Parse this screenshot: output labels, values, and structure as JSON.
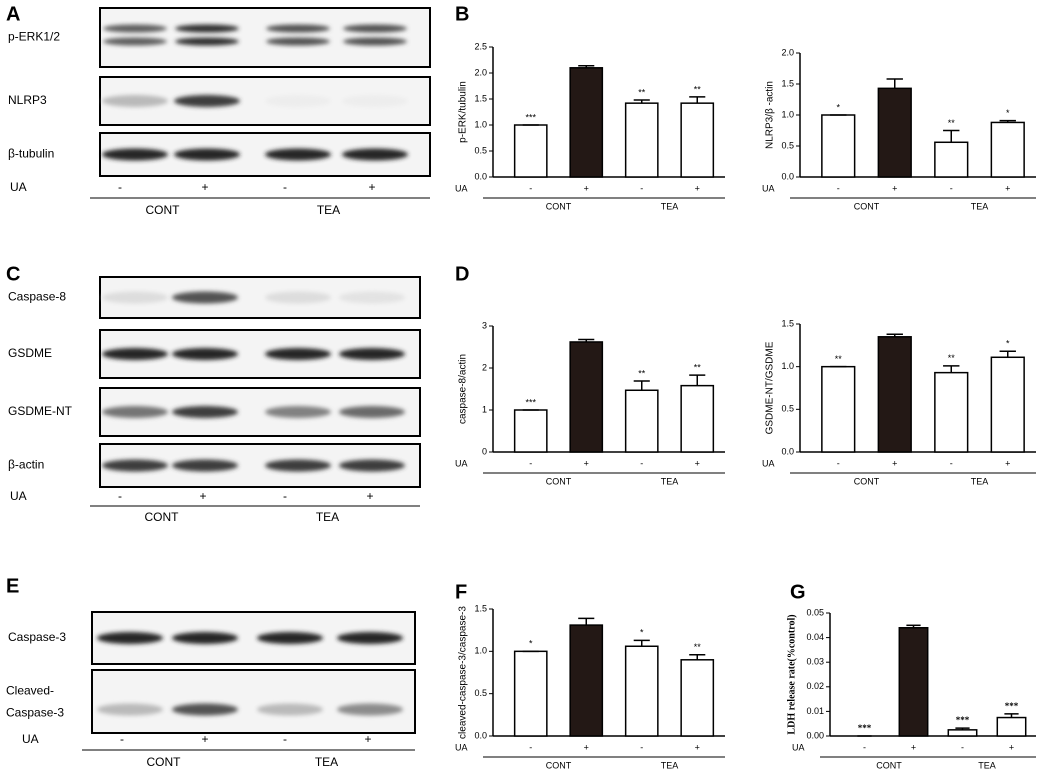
{
  "panel_labels": [
    "A",
    "B",
    "C",
    "D",
    "E",
    "F",
    "G"
  ],
  "blots": [
    {
      "rows": [
        "p-ERK1/2",
        "NLRP3",
        "β-tubulin"
      ],
      "x_label": "UA",
      "categories": [
        "-",
        "+",
        "-",
        "+"
      ],
      "groups": [
        "CONT",
        "TEA"
      ]
    },
    {
      "rows": [
        "Caspase-8",
        "GSDME",
        "GSDME-NT",
        "β-actin"
      ],
      "x_label": "UA",
      "categories": [
        "-",
        "+",
        "-",
        "+"
      ],
      "groups": [
        "CONT",
        "TEA"
      ]
    },
    {
      "rows": [
        "Caspase-3",
        [
          "Cleaved-",
          "Caspase-3"
        ]
      ],
      "x_label": "UA",
      "categories": [
        "-",
        "+",
        "-",
        "+"
      ],
      "groups": [
        "CONT",
        "TEA"
      ]
    }
  ],
  "chart_data": [
    {
      "type": "bar",
      "ylabel": "p-ERK/tubulin",
      "x_label": "UA",
      "categories": [
        "-",
        "+",
        "-",
        "+"
      ],
      "groups": [
        "CONT",
        "TEA"
      ],
      "values": [
        1.0,
        2.1,
        1.42,
        1.42
      ],
      "errors": [
        0,
        0.04,
        0.06,
        0.12
      ],
      "colors": [
        "#ffffff",
        "#231815",
        "#ffffff",
        "#ffffff"
      ],
      "significance": [
        "***",
        null,
        "**",
        "**"
      ],
      "ylim": [
        0,
        2.5
      ],
      "yticks": [
        {
          "value": 0,
          "label": "0.0"
        },
        0.5,
        {
          "value": 1,
          "label": "1.0"
        },
        1.5,
        {
          "value": 2,
          "label": "2.0"
        },
        2.5
      ]
    },
    {
      "type": "bar",
      "ylabel": "NLRP3/β -actin",
      "x_label": "UA",
      "categories": [
        "-",
        "+",
        "-",
        "+"
      ],
      "groups": [
        "CONT",
        "TEA"
      ],
      "values": [
        1.0,
        1.43,
        0.56,
        0.88
      ],
      "errors": [
        0,
        0.15,
        0.19,
        0.03
      ],
      "colors": [
        "#ffffff",
        "#231815",
        "#ffffff",
        "#ffffff"
      ],
      "significance": [
        "*",
        null,
        "**",
        "*"
      ],
      "ylim": [
        0,
        2
      ],
      "yticks": [
        {
          "value": 0,
          "label": "0.0"
        },
        0.5,
        {
          "value": 1,
          "label": "1.0"
        },
        1.5,
        {
          "value": 2,
          "label": "2.0"
        }
      ]
    },
    {
      "type": "bar",
      "ylabel": "caspase-8/actin",
      "x_label": "UA",
      "categories": [
        "-",
        "+",
        "-",
        "+"
      ],
      "groups": [
        "CONT",
        "TEA"
      ],
      "values": [
        1.0,
        2.62,
        1.47,
        1.58
      ],
      "errors": [
        0,
        0.06,
        0.22,
        0.25
      ],
      "colors": [
        "#ffffff",
        "#231815",
        "#ffffff",
        "#ffffff"
      ],
      "significance": [
        "***",
        null,
        "**",
        "**"
      ],
      "ylim": [
        0,
        3
      ],
      "yticks": [
        0,
        1,
        2,
        3
      ]
    },
    {
      "type": "bar",
      "ylabel": "GSDME-NT/GSDME",
      "x_label": "UA",
      "categories": [
        "-",
        "+",
        "-",
        "+"
      ],
      "groups": [
        "CONT",
        "TEA"
      ],
      "values": [
        1.0,
        1.35,
        0.93,
        1.11
      ],
      "errors": [
        0,
        0.03,
        0.08,
        0.07
      ],
      "colors": [
        "#ffffff",
        "#231815",
        "#ffffff",
        "#ffffff"
      ],
      "significance": [
        "**",
        null,
        "**",
        "*"
      ],
      "ylim": [
        0,
        1.5
      ],
      "yticks": [
        {
          "value": 0,
          "label": "0.0"
        },
        0.5,
        {
          "value": 1,
          "label": "1.0"
        },
        1.5
      ]
    },
    {
      "type": "bar",
      "ylabel": "cleaved-caspase-3/caspase-3",
      "x_label": "UA",
      "categories": [
        "-",
        "+",
        "-",
        "+"
      ],
      "groups": [
        "CONT",
        "TEA"
      ],
      "values": [
        1.0,
        1.31,
        1.06,
        0.9
      ],
      "errors": [
        0,
        0.08,
        0.07,
        0.06
      ],
      "colors": [
        "#ffffff",
        "#231815",
        "#ffffff",
        "#ffffff"
      ],
      "significance": [
        "*",
        null,
        "*",
        "**"
      ],
      "ylim": [
        0,
        1.5
      ],
      "yticks": [
        {
          "value": 0,
          "label": "0.0"
        },
        0.5,
        {
          "value": 1,
          "label": "1.0"
        },
        1.5
      ]
    },
    {
      "type": "bar",
      "ylabel": "LDH release rate(%control)",
      "x_label": "UA",
      "categories": [
        "-",
        "+",
        "-",
        "+"
      ],
      "groups": [
        "CONT",
        "TEA"
      ],
      "values": [
        0,
        0.044,
        0.0025,
        0.0075
      ],
      "errors": [
        0,
        0.001,
        0.0007,
        0.0015
      ],
      "colors": [
        "#ffffff",
        "#231815",
        "#ffffff",
        "#ffffff"
      ],
      "significance": [
        "***",
        null,
        "***",
        "***"
      ],
      "ylim": [
        0,
        0.05
      ],
      "yticks": [
        {
          "value": 0,
          "label": "0.00"
        },
        0.01,
        0.02,
        0.03,
        0.04,
        0.05
      ]
    }
  ]
}
